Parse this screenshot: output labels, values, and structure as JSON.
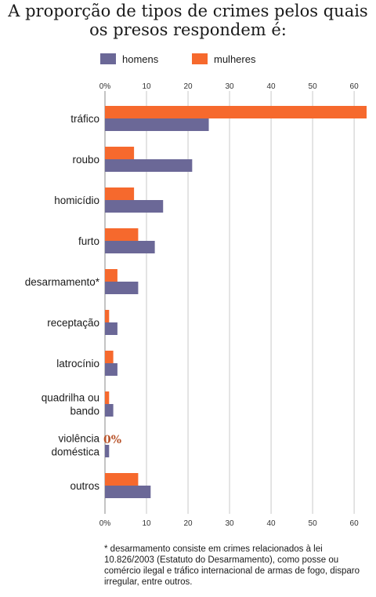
{
  "title_line1": "A proporção de tipos de crimes pelos quais",
  "title_line2": "os presos respondem é:",
  "legend": {
    "homens": "homens",
    "mulheres": "mulheres"
  },
  "colors": {
    "homens": "#6b6897",
    "mulheres": "#f6692d",
    "zero_label": "#b8532a",
    "grid": "#c9c9c9"
  },
  "chart_data": {
    "type": "bar",
    "orientation": "horizontal",
    "categories": [
      [
        "tráfico"
      ],
      [
        "roubo"
      ],
      [
        "homicídio"
      ],
      [
        "furto"
      ],
      [
        "desarmamento*"
      ],
      [
        "receptação"
      ],
      [
        "latrocínio"
      ],
      [
        "quadrilha ou",
        "bando"
      ],
      [
        "violência",
        "doméstica"
      ],
      [
        "outros"
      ]
    ],
    "series": [
      {
        "name": "mulheres",
        "values": [
          63,
          7,
          7,
          8,
          3,
          1,
          2,
          1,
          0,
          8
        ]
      },
      {
        "name": "homens",
        "values": [
          25,
          21,
          14,
          12,
          8,
          3,
          3,
          2,
          1,
          11
        ]
      }
    ],
    "xlim": [
      0,
      63
    ],
    "ticks": [
      "0%",
      "10",
      "20",
      "30",
      "40",
      "50",
      "60"
    ],
    "tick_values": [
      0,
      10,
      20,
      30,
      40,
      50,
      60
    ],
    "annotation": "0%",
    "grid": true,
    "legend_position": "top"
  },
  "footnote": "* desarmamento consiste em crimes relacionados à lei 10.826/2003 (Estatuto do Desarmamento), como posse ou comércio ilegal e tráfico internacional de armas de fogo, disparo irregular, entre outros."
}
